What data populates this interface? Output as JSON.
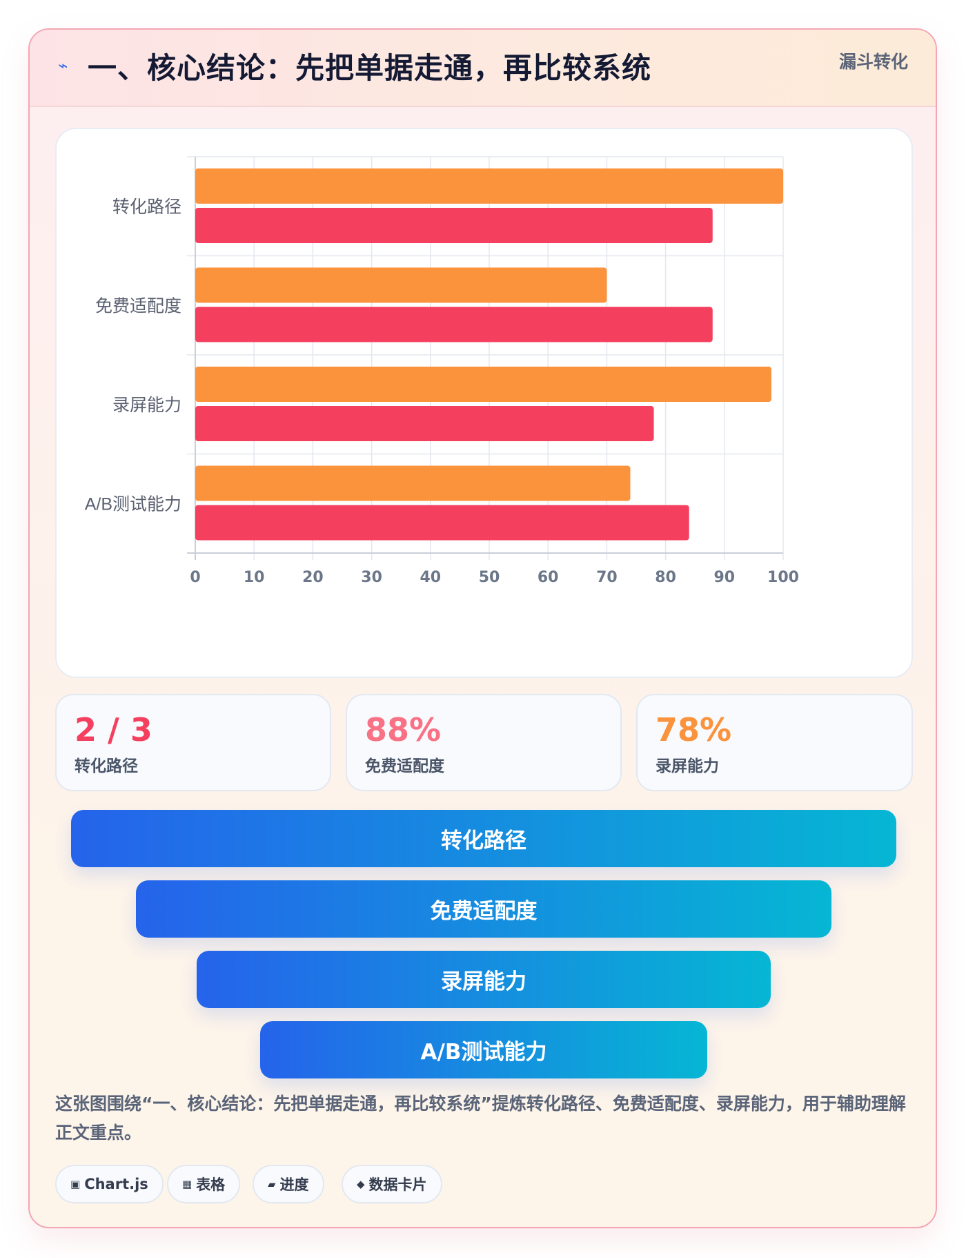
{
  "header": {
    "icon": "lightning-icon",
    "icon_glyph": "⌁",
    "title": "一、核心结论：先把单据走通，再比较系统",
    "tag": "漏斗转化"
  },
  "chart_data": {
    "type": "bar",
    "orientation": "horizontal",
    "categories": [
      "转化路径",
      "免费适配度",
      "录屏能力",
      "A/B测试能力"
    ],
    "series": [
      {
        "values": [
          100,
          70,
          98,
          74
        ],
        "color": "#fb923c"
      },
      {
        "values": [
          88,
          88,
          78,
          84
        ],
        "color": "#f43f5e"
      }
    ],
    "xlim": [
      0,
      100
    ],
    "xticks": [
      0,
      10,
      20,
      30,
      40,
      50,
      60,
      70,
      80,
      90,
      100
    ],
    "grid": true,
    "legend": "none"
  },
  "stats": [
    {
      "value": "2 / 3",
      "label": "转化路径",
      "color": "#f43f5e"
    },
    {
      "value": "88%",
      "label": "免费适配度",
      "color": "#f87185"
    },
    {
      "value": "78%",
      "label": "录屏能力",
      "color": "#fb923c"
    }
  ],
  "funnel": [
    "转化路径",
    "免费适配度",
    "录屏能力",
    "A/B测试能力"
  ],
  "caption": "这张图围绕“一、核心结论：先把单据走通，再比较系统”提炼转化路径、免费适配度、录屏能力，用于辅助理解正文重点。",
  "chips": [
    {
      "icon": "chart-icon",
      "glyph": "▣",
      "label": "Chart.js"
    },
    {
      "icon": "table-icon",
      "glyph": "▦",
      "label": "表格"
    },
    {
      "icon": "progress-icon",
      "glyph": "▰",
      "label": "进度"
    },
    {
      "icon": "data-card-icon",
      "glyph": "◆",
      "label": "数据卡片"
    }
  ]
}
